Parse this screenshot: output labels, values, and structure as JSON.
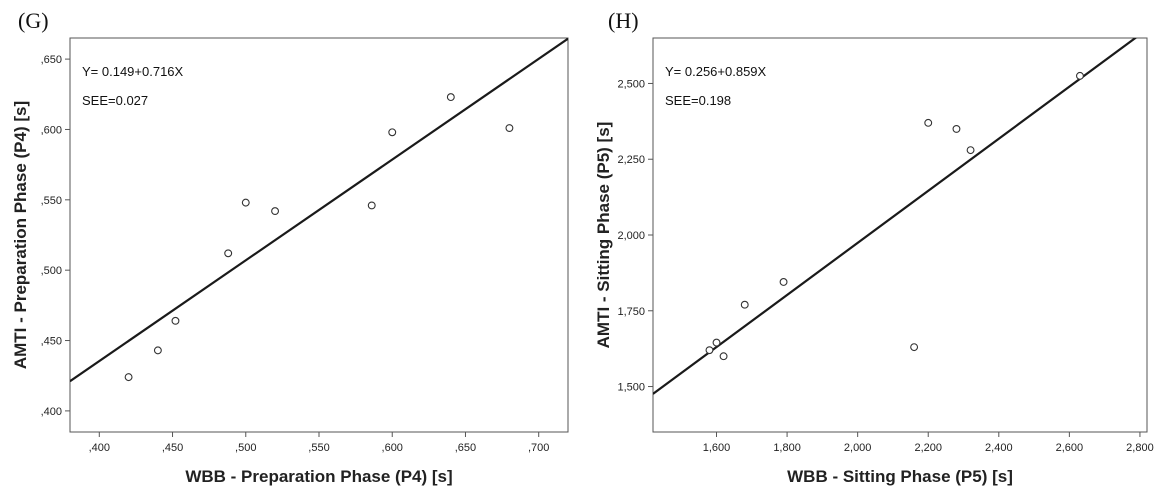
{
  "chart_data": [
    {
      "type": "scatter",
      "panel_label": "(G)",
      "xlabel": "WBB - Preparation Phase (P4) [s]",
      "ylabel": "AMTI - Preparation Phase (P4) [s]",
      "xlim": [
        0.38,
        0.72
      ],
      "ylim": [
        0.385,
        0.665
      ],
      "xticks": [
        0.4,
        0.45,
        0.5,
        0.55,
        0.6,
        0.65,
        0.7
      ],
      "xtick_labels": [
        ",400",
        ",450",
        ",500",
        ",550",
        ",600",
        ",650",
        ",700"
      ],
      "yticks": [
        0.4,
        0.45,
        0.5,
        0.55,
        0.6,
        0.65
      ],
      "ytick_labels": [
        ",400",
        ",450",
        ",500",
        ",550",
        ",600",
        ",650"
      ],
      "grid": false,
      "annotations": [
        "Y= 0.149+0.716X",
        "SEE=0.027"
      ],
      "fit": {
        "intercept": 0.149,
        "slope": 0.716
      },
      "points": [
        {
          "x": 0.42,
          "y": 0.424
        },
        {
          "x": 0.44,
          "y": 0.443
        },
        {
          "x": 0.452,
          "y": 0.464
        },
        {
          "x": 0.488,
          "y": 0.512
        },
        {
          "x": 0.5,
          "y": 0.548
        },
        {
          "x": 0.52,
          "y": 0.542
        },
        {
          "x": 0.586,
          "y": 0.546
        },
        {
          "x": 0.6,
          "y": 0.598
        },
        {
          "x": 0.64,
          "y": 0.623
        },
        {
          "x": 0.68,
          "y": 0.601
        }
      ]
    },
    {
      "type": "scatter",
      "panel_label": "(H)",
      "xlabel": "WBB - Sitting Phase (P5) [s]",
      "ylabel": "AMTI - Sitting Phase (P5) [s]",
      "xlim": [
        1.42,
        2.82
      ],
      "ylim": [
        1.35,
        2.65
      ],
      "xticks": [
        1.6,
        1.8,
        2.0,
        2.2,
        2.4,
        2.6,
        2.8
      ],
      "xtick_labels": [
        "1,600",
        "1,800",
        "2,000",
        "2,200",
        "2,400",
        "2,600",
        "2,800"
      ],
      "yticks": [
        1.5,
        1.75,
        2.0,
        2.25,
        2.5
      ],
      "ytick_labels": [
        "1,500",
        "1,750",
        "2,000",
        "2,250",
        "2,500"
      ],
      "grid": false,
      "annotations": [
        "Y= 0.256+0.859X",
        "SEE=0.198"
      ],
      "fit": {
        "intercept": 0.256,
        "slope": 0.859
      },
      "points": [
        {
          "x": 1.58,
          "y": 1.62
        },
        {
          "x": 1.6,
          "y": 1.645
        },
        {
          "x": 1.62,
          "y": 1.6
        },
        {
          "x": 1.68,
          "y": 1.77
        },
        {
          "x": 1.79,
          "y": 1.845
        },
        {
          "x": 2.16,
          "y": 1.63
        },
        {
          "x": 2.2,
          "y": 2.37
        },
        {
          "x": 2.28,
          "y": 2.35
        },
        {
          "x": 2.32,
          "y": 2.28
        },
        {
          "x": 2.63,
          "y": 2.525
        }
      ]
    }
  ]
}
